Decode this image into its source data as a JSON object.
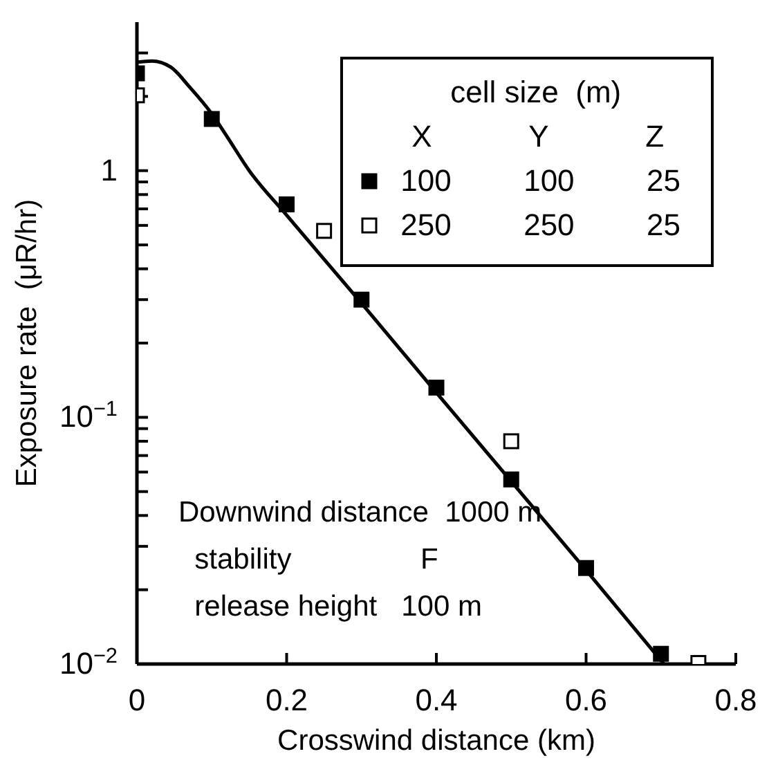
{
  "chart_data": {
    "type": "scatter",
    "xlabel": "Crosswind distance  (km)",
    "ylabel": "Exposure rate  (μR/hr)",
    "legend_title": "cell size  (m)",
    "legend": "top right",
    "log": "y",
    "xlim": [
      0,
      0.8
    ],
    "xticks": [
      0,
      0.2,
      0.4,
      0.6,
      0.8
    ],
    "ylim": [
      0.01,
      4
    ],
    "yticks": [
      {
        "value": 0.01,
        "label": "10$^{−2}$"
      },
      {
        "value": 0.02,
        "label": null
      },
      {
        "value": 0.03,
        "label": null
      },
      {
        "value": 0.04,
        "label": null
      },
      {
        "value": 0.05,
        "label": null
      },
      {
        "value": 0.06,
        "label": null
      },
      {
        "value": 0.07,
        "label": null
      },
      {
        "value": 0.08,
        "label": null
      },
      {
        "value": 0.09,
        "label": null
      },
      {
        "value": 0.1,
        "label": "10$^{−1}$"
      },
      {
        "value": 0.2,
        "label": null
      },
      {
        "value": 0.3,
        "label": null
      },
      {
        "value": 0.4,
        "label": null
      },
      {
        "value": 0.5,
        "label": null
      },
      {
        "value": 0.6,
        "label": null
      },
      {
        "value": 0.7,
        "label": null
      },
      {
        "value": 0.8,
        "label": null
      },
      {
        "value": 0.9,
        "label": null
      },
      {
        "value": 1,
        "label": "1"
      },
      {
        "value": 2,
        "label": null
      },
      {
        "value": 3,
        "label": null
      }
    ],
    "annotations": [
      "X  Y  Z",
      "Downwind distance  1000 m",
      "  stability                F",
      "  release height   100 m"
    ],
    "series": [
      {
        "type": "line",
        "color": "#000000",
        "marker": "none",
        "line_style": "solid",
        "x": [
          0,
          0.02,
          0.045,
          0.07,
          0.1,
          0.12,
          0.15,
          0.2,
          0.3,
          0.4,
          0.5,
          0.6,
          0.704
        ],
        "values": [
          2.75,
          2.78,
          2.63,
          2.19,
          1.7,
          1.38,
          1.0,
          0.66,
          0.29,
          0.126,
          0.055,
          0.024,
          0.01
        ]
      },
      {
        "name": "100  100  25",
        "color": "#000000",
        "marker": "square",
        "x": [
          0,
          0.1,
          0.2,
          0.3,
          0.4,
          0.5,
          0.6,
          0.7
        ],
        "values": [
          2.48,
          1.62,
          0.73,
          0.3,
          0.132,
          0.056,
          0.0245,
          0.011
        ]
      },
      {
        "name": "250  250  25",
        "color": "#ffffff",
        "marker": "square",
        "x": [
          0,
          0.25,
          0.5,
          0.75
        ],
        "values": [
          2.02,
          0.57,
          0.08,
          0.0101
        ]
      }
    ]
  }
}
